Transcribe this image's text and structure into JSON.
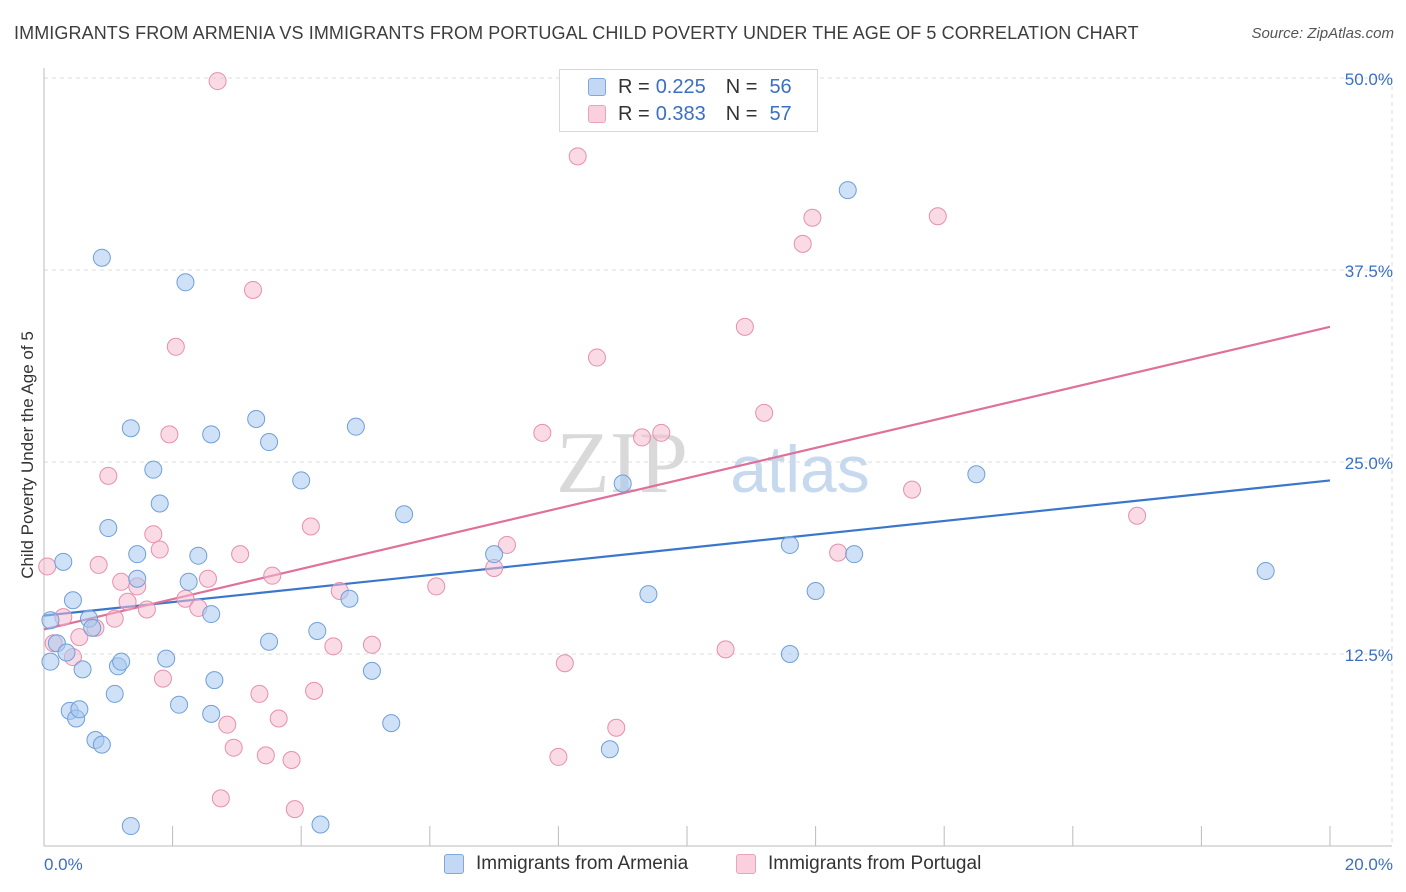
{
  "title": "IMMIGRANTS FROM ARMENIA VS IMMIGRANTS FROM PORTUGAL CHILD POVERTY UNDER THE AGE OF 5 CORRELATION CHART",
  "source": "Source: ZipAtlas.com",
  "watermark": {
    "zip": "ZIP",
    "atlas": "atlas"
  },
  "legend": {
    "r_label": "R =",
    "n_label": "N =",
    "rows": [
      {
        "r": "0.225",
        "n": "56"
      },
      {
        "r": "0.383",
        "n": "57"
      }
    ]
  },
  "colors": {
    "armenia_fill": "#a8c8f0",
    "armenia_stroke": "#6f9fd8",
    "armenia_line": "#3a77cc",
    "portugal_fill": "#f6bcd0",
    "portugal_stroke": "#e68fae",
    "portugal_line": "#e0709a",
    "tick_label": "#3a6fc4",
    "grid": "#dcdcdc"
  },
  "chart_data": {
    "type": "scatter",
    "title": "IMMIGRANTS FROM ARMENIA VS IMMIGRANTS FROM PORTUGAL CHILD POVERTY UNDER THE AGE OF 5 CORRELATION CHART",
    "xlabel": "",
    "ylabel": "Child Poverty Under the Age of 5",
    "xlim": [
      0,
      20
    ],
    "ylim": [
      0,
      50
    ],
    "x_tick_labels": [
      {
        "value": 0,
        "label": "0.0%"
      },
      {
        "value": 20,
        "label": "20.0%"
      }
    ],
    "y_ticks": [
      {
        "value": 12.5,
        "label": "12.5%"
      },
      {
        "value": 25,
        "label": "25.0%"
      },
      {
        "value": 37.5,
        "label": "37.5%"
      },
      {
        "value": 50,
        "label": "50.0%"
      }
    ],
    "grid": true,
    "legend_position": "top-center",
    "series": [
      {
        "name": "Immigrants from Armenia",
        "r": 0.225,
        "n": 56,
        "trend": [
          [
            0,
            15.0
          ],
          [
            20,
            23.8
          ]
        ],
        "points": [
          [
            0.1,
            14.7
          ],
          [
            0.1,
            12.0
          ],
          [
            0.2,
            13.2
          ],
          [
            0.3,
            18.5
          ],
          [
            0.35,
            12.6
          ],
          [
            0.4,
            8.8
          ],
          [
            0.45,
            16.0
          ],
          [
            0.5,
            8.3
          ],
          [
            0.55,
            8.9
          ],
          [
            0.6,
            11.5
          ],
          [
            0.7,
            14.8
          ],
          [
            0.75,
            14.2
          ],
          [
            0.8,
            6.9
          ],
          [
            0.9,
            6.6
          ],
          [
            0.9,
            38.3
          ],
          [
            1.0,
            20.7
          ],
          [
            1.1,
            9.9
          ],
          [
            1.15,
            11.7
          ],
          [
            1.2,
            12.0
          ],
          [
            1.35,
            27.2
          ],
          [
            1.35,
            1.3
          ],
          [
            1.45,
            19.0
          ],
          [
            1.45,
            17.4
          ],
          [
            1.7,
            24.5
          ],
          [
            1.8,
            22.3
          ],
          [
            1.9,
            12.2
          ],
          [
            2.1,
            9.2
          ],
          [
            2.2,
            36.7
          ],
          [
            2.25,
            17.2
          ],
          [
            2.4,
            18.9
          ],
          [
            2.6,
            15.1
          ],
          [
            2.6,
            8.6
          ],
          [
            2.6,
            26.8
          ],
          [
            2.65,
            10.8
          ],
          [
            3.3,
            27.8
          ],
          [
            3.5,
            26.3
          ],
          [
            3.5,
            13.3
          ],
          [
            4.0,
            23.8
          ],
          [
            4.25,
            14.0
          ],
          [
            4.3,
            1.4
          ],
          [
            4.75,
            16.1
          ],
          [
            4.85,
            27.3
          ],
          [
            5.1,
            11.4
          ],
          [
            5.4,
            8.0
          ],
          [
            5.6,
            21.6
          ],
          [
            7.0,
            19.0
          ],
          [
            8.8,
            6.3
          ],
          [
            9.0,
            23.6
          ],
          [
            9.4,
            16.4
          ],
          [
            11.6,
            19.6
          ],
          [
            11.6,
            12.5
          ],
          [
            12.0,
            16.6
          ],
          [
            12.5,
            42.7
          ],
          [
            12.6,
            19.0
          ],
          [
            14.5,
            24.2
          ],
          [
            19.0,
            17.9
          ]
        ]
      },
      {
        "name": "Immigrants from Portugal",
        "r": 0.383,
        "n": 57,
        "trend": [
          [
            0,
            14.1
          ],
          [
            20,
            33.8
          ]
        ],
        "points": [
          [
            0.05,
            18.2
          ],
          [
            0.15,
            13.2
          ],
          [
            0.3,
            14.9
          ],
          [
            0.45,
            12.3
          ],
          [
            0.55,
            13.6
          ],
          [
            0.8,
            14.2
          ],
          [
            0.85,
            18.3
          ],
          [
            1.0,
            24.1
          ],
          [
            1.1,
            14.8
          ],
          [
            1.2,
            17.2
          ],
          [
            1.3,
            15.9
          ],
          [
            1.45,
            16.9
          ],
          [
            1.6,
            15.4
          ],
          [
            1.7,
            20.3
          ],
          [
            1.8,
            19.3
          ],
          [
            1.85,
            10.9
          ],
          [
            1.95,
            26.8
          ],
          [
            2.05,
            32.5
          ],
          [
            2.2,
            16.1
          ],
          [
            2.4,
            15.5
          ],
          [
            2.55,
            17.4
          ],
          [
            2.7,
            49.8
          ],
          [
            2.75,
            3.1
          ],
          [
            2.85,
            7.9
          ],
          [
            2.95,
            6.4
          ],
          [
            3.05,
            19.0
          ],
          [
            3.25,
            36.2
          ],
          [
            3.35,
            9.9
          ],
          [
            3.45,
            5.9
          ],
          [
            3.55,
            17.6
          ],
          [
            3.65,
            8.3
          ],
          [
            3.85,
            5.6
          ],
          [
            3.9,
            2.4
          ],
          [
            4.15,
            20.8
          ],
          [
            4.2,
            10.1
          ],
          [
            4.5,
            13.0
          ],
          [
            4.6,
            16.6
          ],
          [
            5.1,
            13.1
          ],
          [
            6.1,
            16.9
          ],
          [
            7.0,
            18.1
          ],
          [
            7.2,
            19.6
          ],
          [
            7.75,
            26.9
          ],
          [
            8.0,
            5.8
          ],
          [
            8.1,
            11.9
          ],
          [
            8.3,
            44.9
          ],
          [
            8.6,
            31.8
          ],
          [
            8.9,
            7.7
          ],
          [
            9.3,
            26.6
          ],
          [
            9.6,
            26.9
          ],
          [
            10.6,
            12.8
          ],
          [
            10.9,
            33.8
          ],
          [
            11.2,
            28.2
          ],
          [
            11.8,
            39.2
          ],
          [
            11.95,
            40.9
          ],
          [
            12.35,
            19.1
          ],
          [
            13.5,
            23.2
          ],
          [
            13.9,
            41.0
          ],
          [
            17.0,
            21.5
          ]
        ]
      }
    ]
  },
  "bottom_legend": [
    {
      "label": "Immigrants from Armenia"
    },
    {
      "label": "Immigrants from Portugal"
    }
  ]
}
